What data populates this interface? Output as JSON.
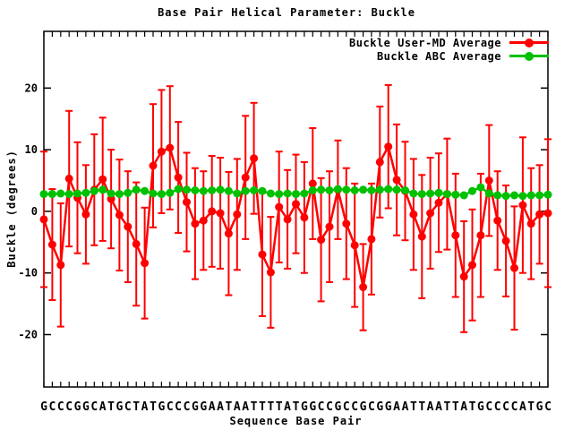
{
  "chart_data": {
    "type": "line",
    "title": "Base Pair Helical Parameter: Buckle",
    "xlabel": "Sequence Base Pair",
    "ylabel": "Buckle (degrees)",
    "ylim": [
      -28.5,
      29.2
    ],
    "yticks": [
      -20,
      -10,
      0,
      10,
      20
    ],
    "grid": false,
    "legend_position": "top-right-inside",
    "x_tick_labels": [
      "G",
      "C",
      "C",
      "C",
      "G",
      "G",
      "C",
      "A",
      "T",
      "G",
      "C",
      "T",
      "A",
      "T",
      "G",
      "C",
      "C",
      "C",
      "G",
      "G",
      "A",
      "A",
      "T",
      "A",
      "A",
      "T",
      "T",
      "T",
      "T",
      "A",
      "T",
      "G",
      "G",
      "C",
      "C",
      "G",
      "C",
      "C",
      "G",
      "C",
      "G",
      "G",
      "A",
      "A",
      "T",
      "T",
      "A",
      "A",
      "T",
      "T",
      "A",
      "T",
      "G",
      "C",
      "C",
      "C",
      "C",
      "A",
      "T",
      "G",
      "C"
    ],
    "series": [
      {
        "name": "Buckle User-MD Average",
        "color": "#ff0000",
        "marker": "filled-circle",
        "has_error_bars": true,
        "values": [
          -1.3,
          -5.4,
          -8.7,
          5.3,
          2.2,
          -0.5,
          3.5,
          5.2,
          2.0,
          -0.6,
          -2.5,
          -5.3,
          -8.4,
          7.4,
          9.7,
          10.3,
          5.5,
          1.5,
          -2.0,
          -1.5,
          0.0,
          -0.3,
          -3.6,
          -0.5,
          5.5,
          8.6,
          -7.0,
          -9.9,
          0.7,
          -1.3,
          1.2,
          -1.0,
          4.5,
          -4.6,
          -2.5,
          3.5,
          -2.0,
          -5.5,
          -12.3,
          -4.5,
          8.0,
          10.5,
          5.1,
          3.3,
          -0.5,
          -4.1,
          -0.3,
          1.4,
          2.8,
          -3.9,
          -10.6,
          -8.7,
          -3.9,
          5.0,
          -1.5,
          -4.8,
          -9.2,
          1.0,
          -2.0,
          -0.5,
          -0.3
        ],
        "errors": [
          11,
          9,
          10,
          11,
          9,
          8,
          9,
          10,
          8,
          9,
          9,
          10,
          9,
          10,
          10,
          10,
          9,
          8,
          9,
          8,
          9,
          9,
          10,
          9,
          10,
          9,
          10,
          9,
          9,
          8,
          8,
          9,
          9,
          10,
          9,
          8,
          9,
          10,
          7,
          9,
          9,
          10,
          9,
          8,
          9,
          10,
          9,
          8,
          9,
          10,
          9,
          9,
          10,
          9,
          8,
          9,
          10,
          11,
          9,
          8,
          12
        ]
      },
      {
        "name": "Buckle ABC Average",
        "color": "#00c000",
        "marker": "filled-circle",
        "has_error_bars": false,
        "values": [
          2.8,
          2.8,
          2.9,
          2.8,
          2.9,
          3.0,
          3.3,
          3.5,
          2.9,
          2.8,
          3.0,
          3.5,
          3.3,
          2.9,
          2.8,
          3.0,
          3.6,
          3.5,
          3.4,
          3.3,
          3.4,
          3.5,
          3.3,
          2.9,
          3.3,
          3.4,
          3.3,
          2.9,
          2.8,
          2.9,
          2.8,
          2.9,
          3.4,
          3.5,
          3.4,
          3.6,
          3.5,
          3.4,
          3.5,
          3.4,
          3.5,
          3.6,
          3.5,
          3.4,
          2.9,
          2.8,
          2.9,
          3.0,
          2.8,
          2.7,
          2.6,
          3.3,
          3.9,
          2.9,
          2.6,
          2.5,
          2.6,
          2.5,
          2.6,
          2.6,
          2.7
        ]
      }
    ]
  },
  "colors": {
    "background": "#ffffff",
    "axis": "#000000",
    "series_red": "#ff0000",
    "series_green": "#00c000"
  }
}
